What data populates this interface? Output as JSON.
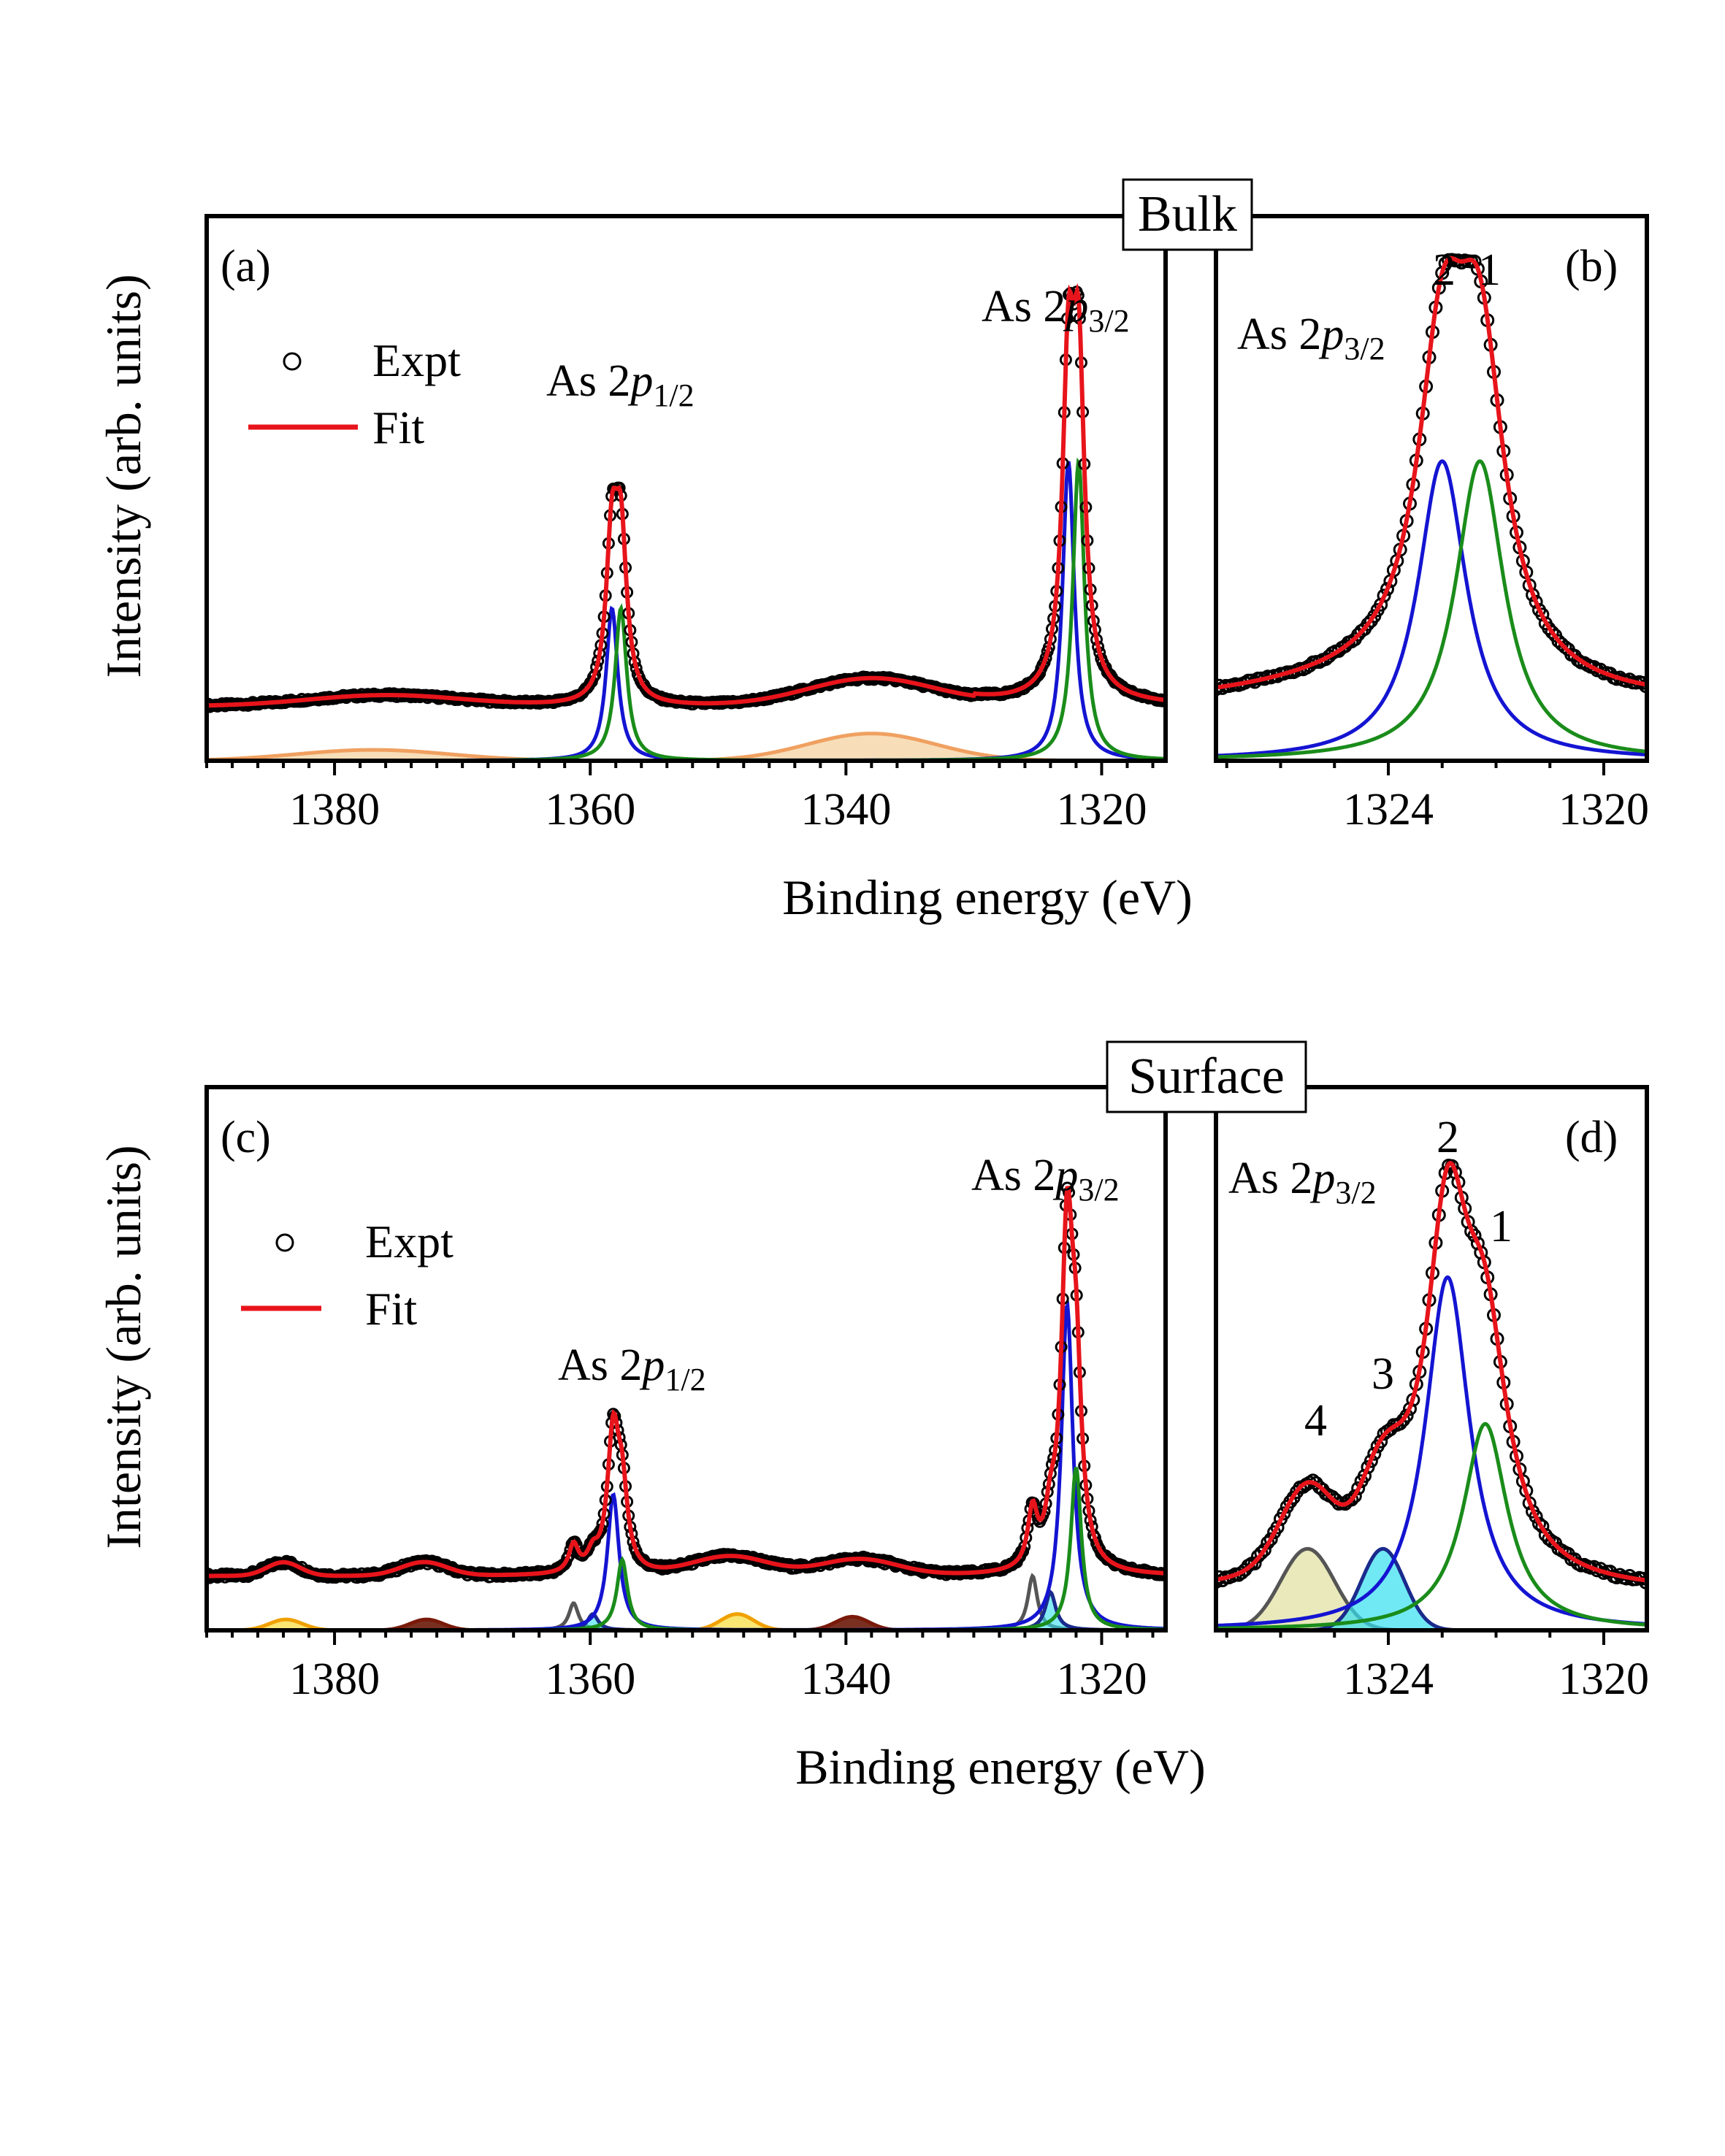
{
  "figure": {
    "y_axis_title": "Intensity (arb. units)",
    "x_axis_title": "Binding energy (eV)",
    "banner_top": "Bulk",
    "banner_bottom": "Surface"
  },
  "chart_data": [
    {
      "panel": "(a)",
      "type": "line",
      "title": "",
      "xlabel": "Binding energy (eV)",
      "ylabel": "Intensity (arb. units)",
      "xlim": [
        1390,
        1315
      ],
      "ylim": [
        0,
        1.0
      ],
      "xticks": [
        1380,
        1360,
        1340,
        1320
      ],
      "xtick_labels": [
        "1380",
        "1360",
        "1340",
        "1320"
      ],
      "legend": [
        {
          "label": "Expt",
          "marker": "open-circle",
          "color": "#000000"
        },
        {
          "label": "Fit",
          "marker": "line",
          "color": "#e8141b"
        }
      ],
      "legend_position": "top-left",
      "annotations": [
        {
          "text": "As 2p",
          "subscript": "1/2",
          "near_x": 1358
        },
        {
          "text": "As 2p",
          "subscript": "3/2",
          "near_x": 1322.3
        }
      ],
      "background": {
        "level": 0.1,
        "humps": [
          {
            "center": 1376,
            "height": 0.02,
            "width": 6
          },
          {
            "center": 1338,
            "height": 0.05,
            "width": 5
          }
        ]
      },
      "components": [
        {
          "name": "1",
          "color": "#1a8c1a",
          "peaks": [
            {
              "center": 1321.8,
              "height": 0.55,
              "width": 0.55
            },
            {
              "center": 1357.6,
              "height": 0.28,
              "width": 0.55
            }
          ]
        },
        {
          "name": "2",
          "color": "#1414d2",
          "peaks": [
            {
              "center": 1322.6,
              "height": 0.55,
              "width": 0.55
            },
            {
              "center": 1358.3,
              "height": 0.28,
              "width": 0.55
            }
          ]
        },
        {
          "name": "satellite",
          "color": "#f0a060",
          "peaks": [
            {
              "center": 1338,
              "height": 0.05,
              "width": 5
            },
            {
              "center": 1377,
              "height": 0.02,
              "width": 6
            }
          ]
        }
      ]
    },
    {
      "panel": "(b)",
      "type": "line",
      "xlabel": "Binding energy (eV)",
      "xlim": [
        1327.2,
        1319.2
      ],
      "ylim": [
        0,
        1.0
      ],
      "xticks": [
        1324,
        1320
      ],
      "xtick_labels": [
        "1324",
        "1320"
      ],
      "annotations": [
        {
          "text": "As 2p",
          "subscript": "3/2"
        },
        {
          "text": "2",
          "near_x": 1323.0
        },
        {
          "text": "1",
          "near_x": 1322.3
        }
      ],
      "components": [
        {
          "name": "1",
          "color": "#1a8c1a",
          "center": 1322.3,
          "height": 0.55,
          "width": 0.55
        },
        {
          "name": "2",
          "color": "#1414d2",
          "center": 1323.0,
          "height": 0.55,
          "width": 0.55
        }
      ]
    },
    {
      "panel": "(c)",
      "type": "line",
      "xlabel": "Binding energy (eV)",
      "ylabel": "Intensity (arb. units)",
      "xlim": [
        1390,
        1315
      ],
      "ylim": [
        0,
        1.0
      ],
      "xticks": [
        1380,
        1360,
        1340,
        1320
      ],
      "xtick_labels": [
        "1380",
        "1360",
        "1340",
        "1320"
      ],
      "legend": [
        {
          "label": "Expt",
          "marker": "open-circle",
          "color": "#000000"
        },
        {
          "label": "Fit",
          "marker": "line",
          "color": "#e8141b"
        }
      ],
      "legend_position": "top-left",
      "annotations": [
        {
          "text": "As 2p",
          "subscript": "1/2",
          "near_x": 1358
        },
        {
          "text": "As 2p",
          "subscript": "3/2",
          "near_x": 1322.3
        }
      ],
      "components": [
        {
          "name": "1",
          "color": "#1a8c1a",
          "peaks": [
            {
              "center": 1322.0,
              "height": 0.3
            },
            {
              "center": 1357.5,
              "height": 0.13
            }
          ]
        },
        {
          "name": "2",
          "color": "#1414d2",
          "peaks": [
            {
              "center": 1322.7,
              "height": 0.6
            },
            {
              "center": 1358.2,
              "height": 0.25
            }
          ]
        },
        {
          "name": "3",
          "color": "#1a2a8c",
          "peaks": [
            {
              "center": 1324.0,
              "height": 0.07
            },
            {
              "center": 1359.8,
              "height": 0.03
            }
          ]
        },
        {
          "name": "4",
          "color": "#555555",
          "peaks": [
            {
              "center": 1325.4,
              "height": 0.1
            },
            {
              "center": 1361.3,
              "height": 0.05
            }
          ]
        },
        {
          "name": "satellite-a",
          "color": "#f0b000",
          "peaks": [
            {
              "center": 1383.8,
              "height": 0.02
            },
            {
              "center": 1348.5,
              "height": 0.03
            }
          ]
        },
        {
          "name": "satellite-b",
          "color": "#7a1a0a",
          "peaks": [
            {
              "center": 1372.8,
              "height": 0.02
            },
            {
              "center": 1339.5,
              "height": 0.025
            }
          ]
        }
      ]
    },
    {
      "panel": "(d)",
      "type": "line",
      "xlabel": "Binding energy (eV)",
      "xlim": [
        1327.2,
        1319.2
      ],
      "ylim": [
        0,
        1.0
      ],
      "xticks": [
        1324,
        1320
      ],
      "xtick_labels": [
        "1324",
        "1320"
      ],
      "annotations": [
        {
          "text": "As 2p",
          "subscript": "3/2"
        },
        {
          "text": "2"
        },
        {
          "text": "1"
        },
        {
          "text": "3"
        },
        {
          "text": "4"
        }
      ],
      "components": [
        {
          "name": "1",
          "color": "#1a8c1a",
          "center": 1322.2,
          "height": 0.38
        },
        {
          "name": "2",
          "color": "#1414d2",
          "center": 1322.9,
          "height": 0.65
        },
        {
          "name": "3",
          "color": "#1a2a8c",
          "center": 1324.1,
          "height": 0.15,
          "fill": "#33e0f0"
        },
        {
          "name": "4",
          "color": "#555555",
          "center": 1325.5,
          "height": 0.15,
          "fill": "#e0e0a0"
        }
      ]
    }
  ]
}
